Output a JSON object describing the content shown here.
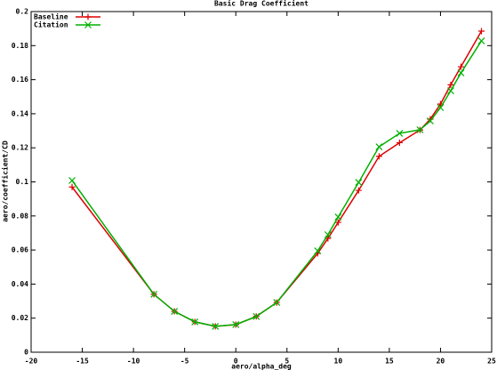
{
  "chart_data": {
    "type": "line",
    "title": "Basic Drag Coefficient",
    "x_label": "aero/alpha_deg",
    "y_label": "aero/coefficient/CD",
    "xlim": [
      -20,
      25
    ],
    "xticks": [
      -20,
      -15,
      -10,
      -5,
      0,
      5,
      10,
      15,
      20,
      25
    ],
    "ylim": [
      0,
      0.2
    ],
    "yticks": [
      0,
      0.02,
      0.04,
      0.06,
      0.08,
      0.1,
      0.12,
      0.14,
      0.16,
      0.18,
      0.2
    ],
    "legend": "top-left",
    "series": [
      {
        "name": "Baseline",
        "color": "#dd0000",
        "marker": "+",
        "x": [
          -16,
          -8,
          -6,
          -4,
          -2,
          0,
          2,
          4,
          8,
          9,
          10,
          12,
          14,
          16,
          18,
          19,
          20,
          21,
          22,
          24
        ],
        "values": [
          0.097,
          0.034,
          0.024,
          0.0178,
          0.0152,
          0.0162,
          0.021,
          0.0292,
          0.058,
          0.0668,
          0.0762,
          0.095,
          0.115,
          0.123,
          0.1305,
          0.1368,
          0.1457,
          0.157,
          0.1676,
          0.1885
        ]
      },
      {
        "name": "Citation",
        "color": "#00b000",
        "marker": "x",
        "x": [
          -16,
          -8,
          -6,
          -4,
          -2,
          0,
          2,
          4,
          8,
          9,
          10,
          12,
          14,
          16,
          18,
          19,
          20,
          21,
          22,
          24
        ],
        "values": [
          0.1008,
          0.034,
          0.024,
          0.0178,
          0.0152,
          0.0162,
          0.021,
          0.0292,
          0.0595,
          0.069,
          0.0794,
          0.0997,
          0.1206,
          0.1285,
          0.1306,
          0.1358,
          0.1436,
          0.1535,
          0.164,
          0.1828
        ]
      }
    ]
  }
}
